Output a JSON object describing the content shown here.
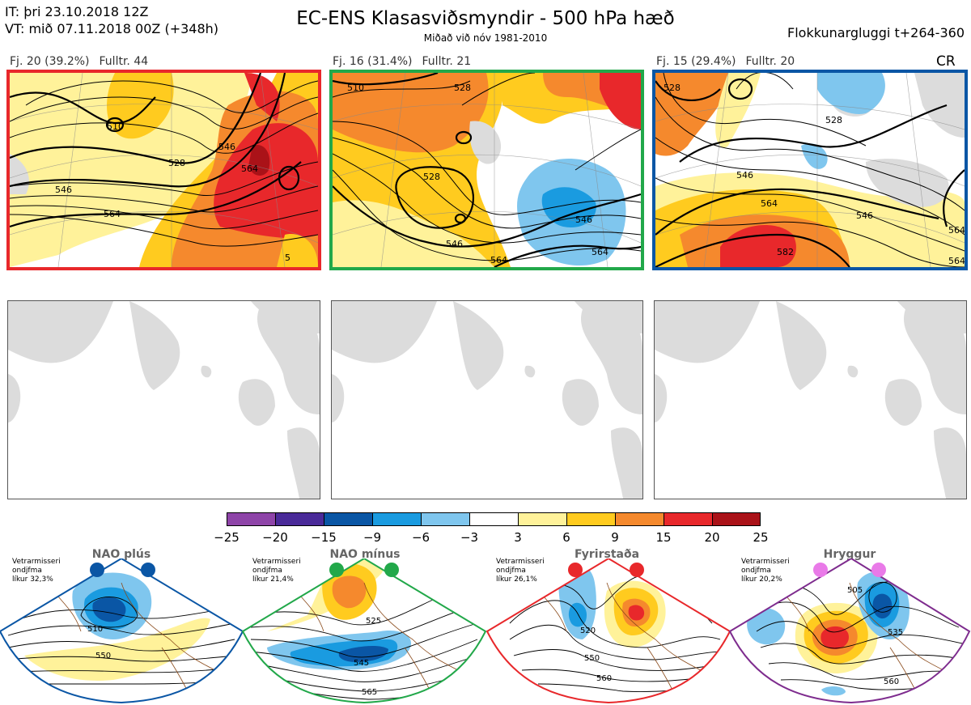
{
  "header": {
    "init_time": "IT: þri 23.10.2018 12Z",
    "valid_time": "VT: mið 07.11.2018 00Z  (+348h)",
    "title": "EC-ENS Klasasviðsmyndir - 500 hPa hæð",
    "subtitle": "Miðað við nóv 1981-2010",
    "window": "Flokkunargluggi t+264-360"
  },
  "clusters": [
    {
      "label": "Fj. 20 (39.2%)",
      "rep": "Fulltr. 44",
      "border_color": "#e8282b",
      "contour_labels": [
        "510",
        "528",
        "546",
        "564",
        "546",
        "564",
        "5"
      ]
    },
    {
      "label": "Fj. 16 (31.4%)",
      "rep": "Fulltr. 21",
      "border_color": "#22a84a",
      "contour_labels": [
        "510",
        "528",
        "528",
        "546",
        "546",
        "564",
        "564"
      ]
    },
    {
      "label": "Fj. 15 (29.4%)",
      "rep": "Fulltr. 20",
      "border_color": "#0a56a5",
      "contour_labels": [
        "528",
        "528",
        "546",
        "564",
        "546",
        "582",
        "564",
        "564"
      ]
    }
  ],
  "corner_label": "CR",
  "colorbar": {
    "colors": [
      "#8e44a8",
      "#4a2a99",
      "#0a56a5",
      "#1a9be0",
      "#7fc6ee",
      "#ffffff",
      "#fff29a",
      "#ffcb1f",
      "#f5892d",
      "#e8282b",
      "#aa1218"
    ],
    "ticks": [
      "−25",
      "−20",
      "−15",
      "−9",
      "−6",
      "−3",
      "3",
      "6",
      "9",
      "15",
      "20",
      "25"
    ]
  },
  "regimes": [
    {
      "name": "NAO plús",
      "info": [
        "Vetrarmisseri",
        "ondjfma",
        "líkur 32,3%"
      ],
      "color": "#0a56a5",
      "dot_color": "#0a56a5",
      "labels": [
        "510",
        "550"
      ]
    },
    {
      "name": "NAO mínus",
      "info": [
        "Vetrarmisseri",
        "ondjfma",
        "líkur 21,4%"
      ],
      "color": "#22a84a",
      "dot_color": "#22a84a",
      "labels": [
        "525",
        "545",
        "565"
      ]
    },
    {
      "name": "Fyrirstaða",
      "info": [
        "Vetrarmisseri",
        "ondjfma",
        "líkur 26,1%"
      ],
      "color": "#e8282b",
      "dot_color": "#e8282b",
      "labels": [
        "520",
        "550",
        "560"
      ]
    },
    {
      "name": "Hryggur",
      "info": [
        "Vetrarmisseri",
        "ondjfma",
        "líkur 20,2%"
      ],
      "color": "#7e2c8e",
      "dot_color": "#e97ae8",
      "labels": [
        "505",
        "535",
        "560"
      ]
    }
  ]
}
